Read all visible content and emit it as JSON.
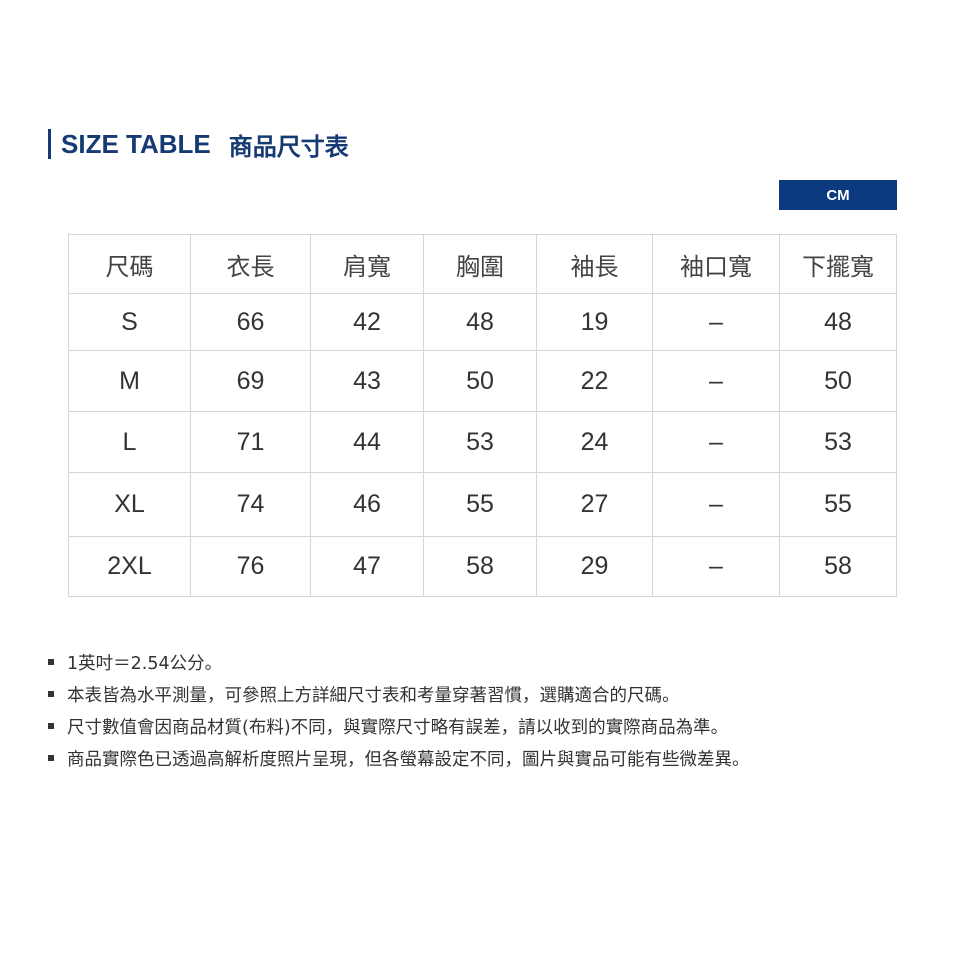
{
  "title": {
    "en": "SIZE TABLE",
    "zh": "商品尺寸表"
  },
  "unit": "CM",
  "table": {
    "headers": [
      "尺碼",
      "衣長",
      "肩寬",
      "胸圍",
      "袖長",
      "袖口寬",
      "下擺寬"
    ],
    "rows": [
      [
        "S",
        "66",
        "42",
        "48",
        "19",
        "–",
        "48"
      ],
      [
        "M",
        "69",
        "43",
        "50",
        "22",
        "–",
        "50"
      ],
      [
        "L",
        "71",
        "44",
        "53",
        "24",
        "–",
        "53"
      ],
      [
        "XL",
        "74",
        "46",
        "55",
        "27",
        "–",
        "55"
      ],
      [
        "2XL",
        "76",
        "47",
        "58",
        "29",
        "–",
        "58"
      ]
    ]
  },
  "notes": [
    "1英吋＝2.54公分。",
    "本表皆為水平測量，可參照上方詳細尺寸表和考量穿著習慣，選購適合的尺碼。",
    "尺寸數值會因商品材質(布料)不同，與實際尺寸略有誤差，請以收到的實際商品為準。",
    "商品實際色已透過高解析度照片呈現，但各螢幕設定不同，圖片與實品可能有些微差異。"
  ],
  "colors": {
    "accent": "#163a73",
    "unit_bg": "#0b3a7e",
    "border": "#d6d6d6"
  }
}
